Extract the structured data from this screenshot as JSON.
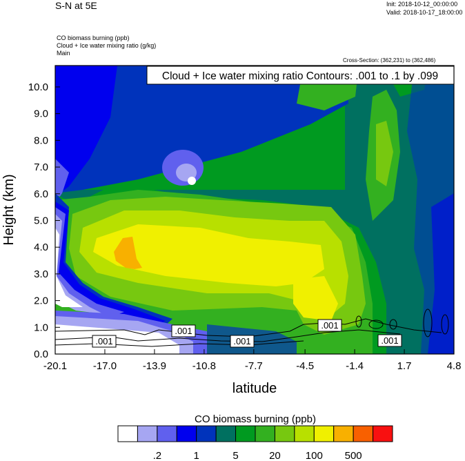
{
  "header": {
    "title": "S-N at 5E",
    "init": "Init: 2018-10-12_00:00:00",
    "valid": "Valid: 2018-10-17_18:00:00",
    "field1": "CO biomass burning   (ppb)",
    "field2": "Cloud + Ice water mixing ratio   (g/kg)",
    "field3": "Main",
    "cross_section": "Cross-Section: (362,231) to (362,486)"
  },
  "chart_data": {
    "type": "heatmap",
    "contour_label": "Cloud + Ice water mixing ratio Contours: .001 to .1 by .099",
    "xlabel": "latitude",
    "ylabel": "Height (km)",
    "x_ticks": [
      "-20.1",
      "-17.0",
      "-13.9",
      "-10.8",
      "-7.7",
      "-4.5",
      "-1.4",
      "1.7",
      "4.8"
    ],
    "y_ticks": [
      "0.0",
      "1.0",
      "2.0",
      "3.0",
      "4.0",
      "5.0",
      "6.0",
      "7.0",
      "8.0",
      "9.0",
      "10.0"
    ],
    "xlim": [
      -20.1,
      4.8
    ],
    "ylim": [
      0,
      10.8
    ],
    "contour_value_labels": [
      ".001",
      ".001",
      ".001",
      ".001",
      ".001"
    ],
    "colorbar": {
      "title": "CO biomass burning  (ppb)",
      "colors": [
        "#ffffff",
        "#a6a6f2",
        "#6060ee",
        "#0000ee",
        "#0033bb",
        "#007060",
        "#009a20",
        "#33b020",
        "#77c810",
        "#b8e000",
        "#f0f000",
        "#f8b000",
        "#f86000",
        "#f81010"
      ],
      "labels": [
        ".2",
        "1",
        "5",
        "20",
        "100",
        "500"
      ]
    }
  }
}
